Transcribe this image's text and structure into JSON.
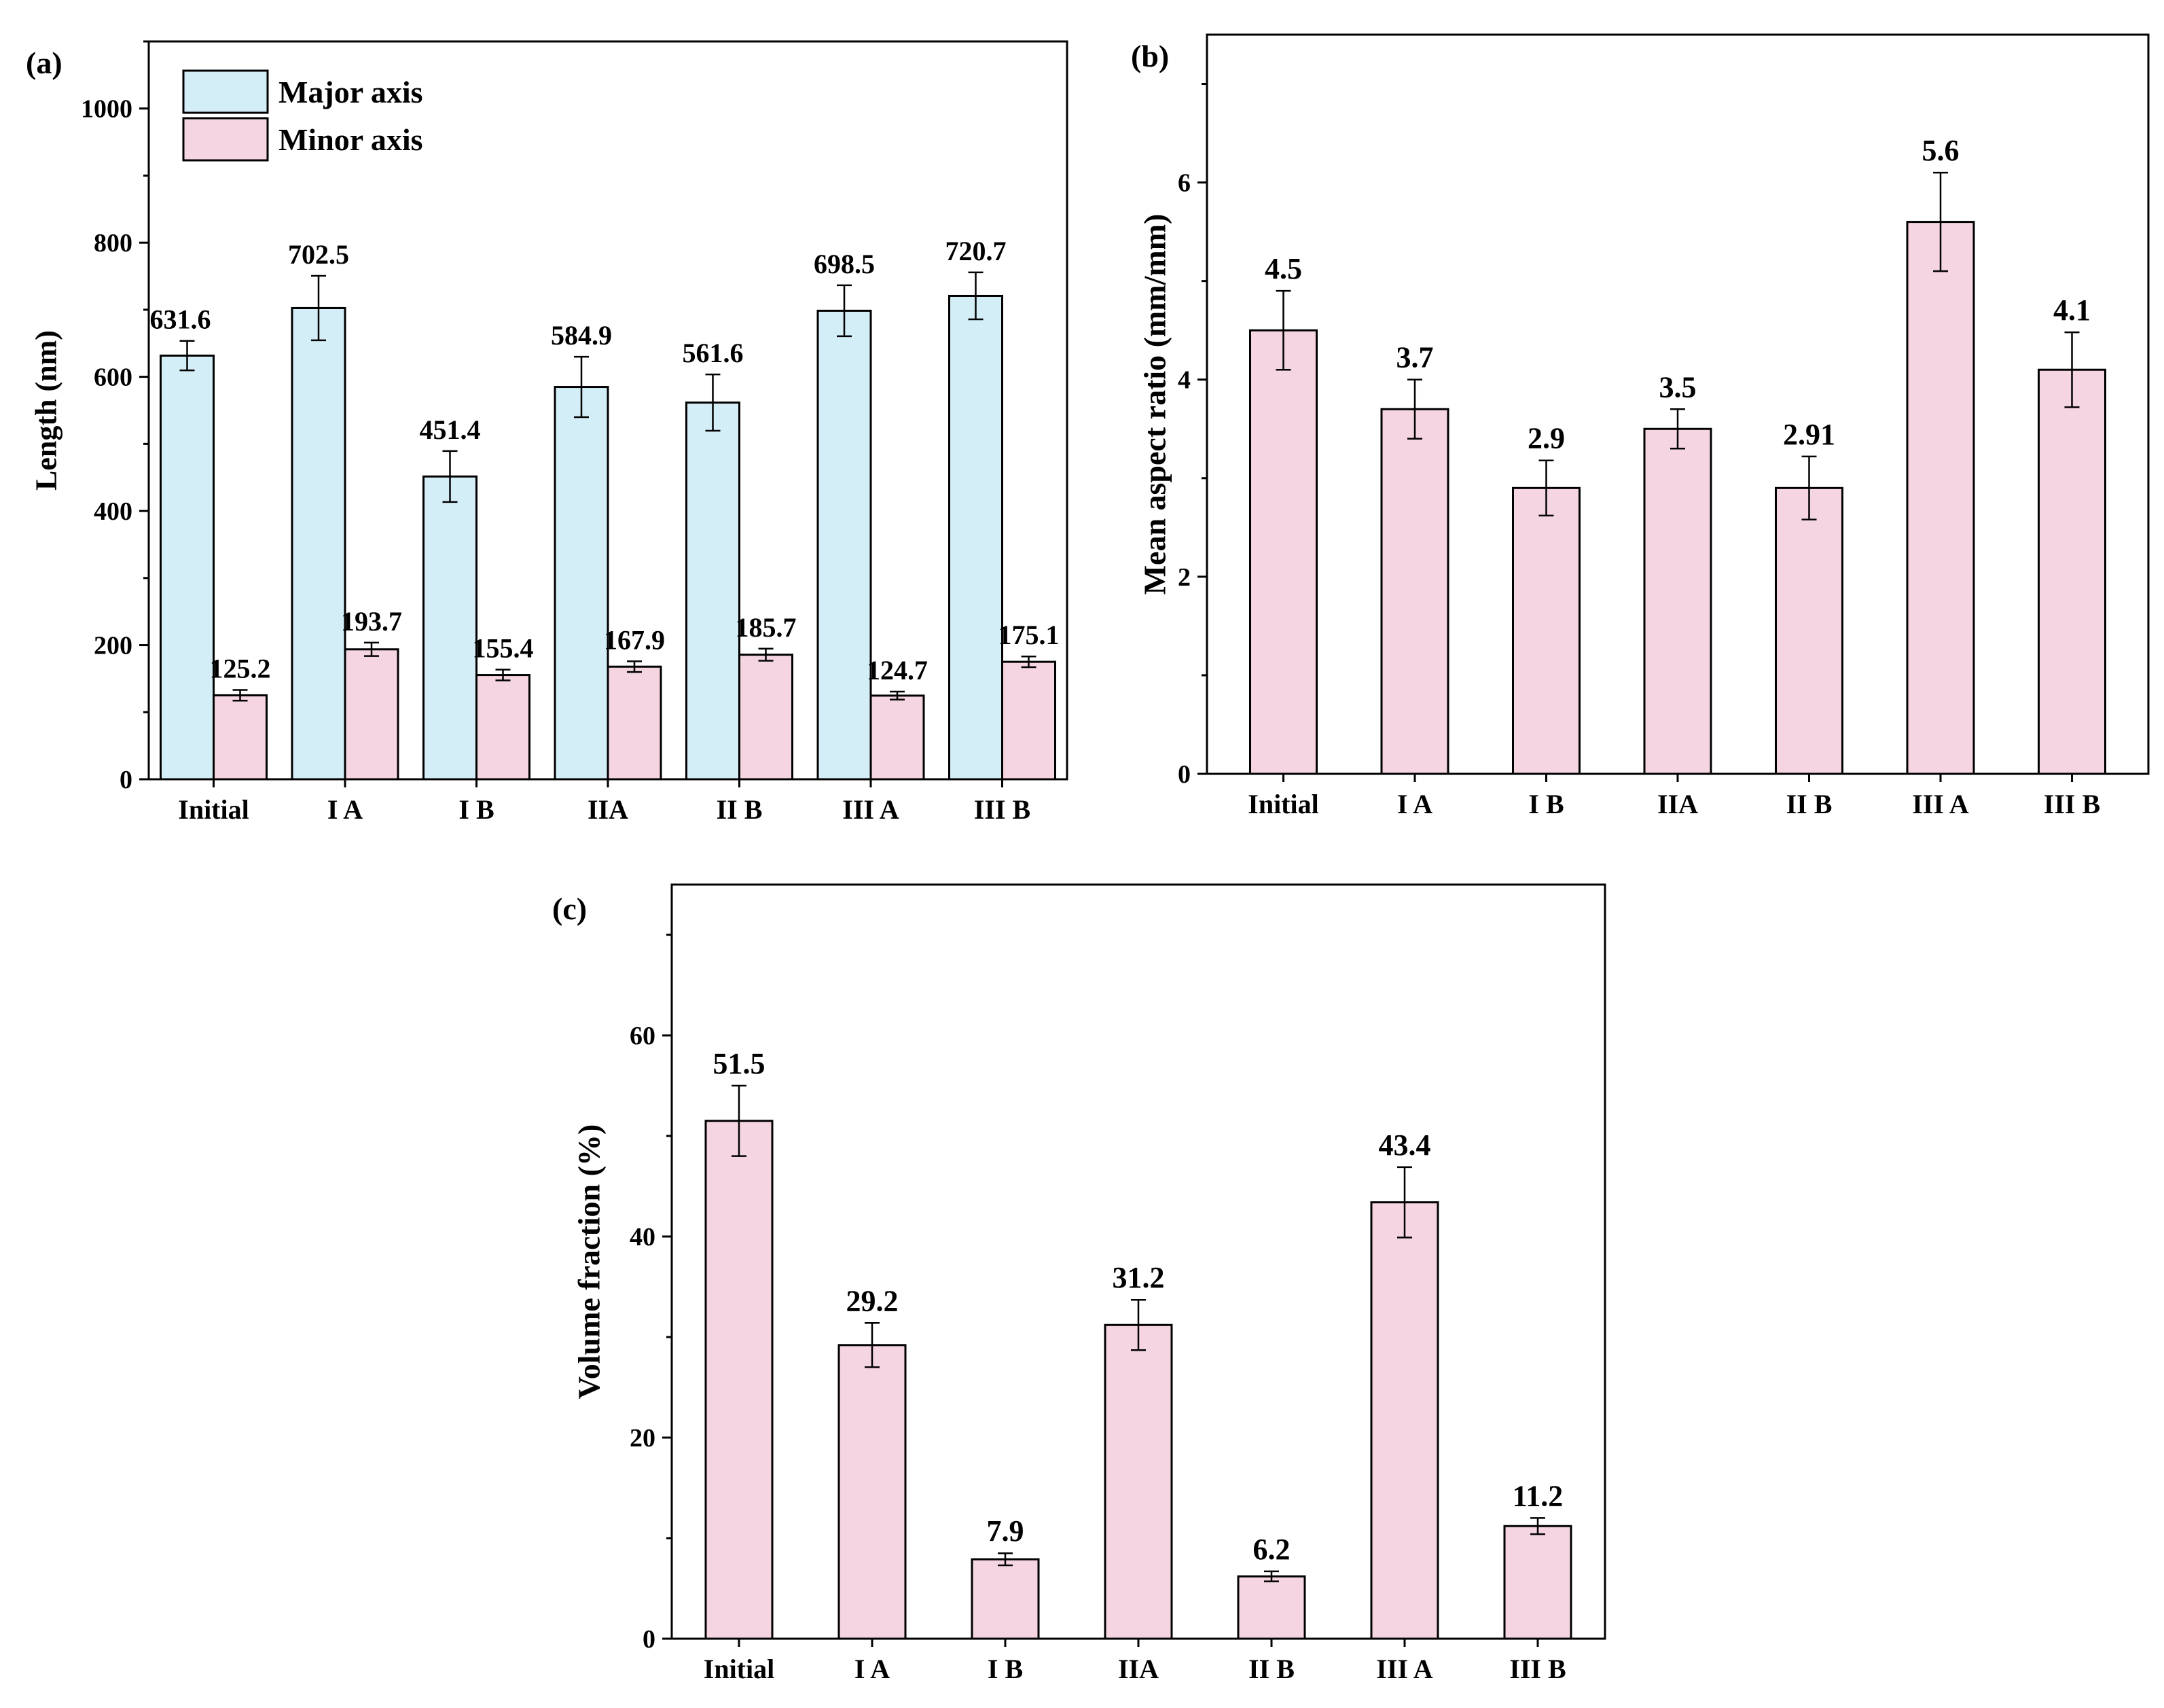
{
  "colors": {
    "major": "#d4eef7",
    "minor": "#f5d5e2",
    "axis": "#000000"
  },
  "chart_data": [
    {
      "id": "a",
      "type": "bar",
      "panel_label": "(a)",
      "categories": [
        "Initial",
        "I A",
        "I B",
        "IIA",
        "II B",
        "III A",
        "III B"
      ],
      "series": [
        {
          "name": "Major axis",
          "color": "#d4eef7",
          "values": [
            631.6,
            702.5,
            451.4,
            584.9,
            561.6,
            698.5,
            720.7
          ],
          "errors": [
            22,
            48,
            38,
            45,
            42,
            38,
            35
          ],
          "labels": [
            "631.6",
            "702.5",
            "451.4",
            "584.9",
            "561.6",
            "698.5",
            "720.7"
          ]
        },
        {
          "name": "Minor axis",
          "color": "#f5d5e2",
          "values": [
            125.2,
            193.7,
            155.4,
            167.9,
            185.7,
            124.7,
            175.1
          ],
          "errors": [
            8,
            10,
            8,
            8,
            9,
            6,
            8
          ],
          "labels": [
            "125.2",
            "193.7",
            "155.4",
            "167.9",
            "185.7",
            "124.7",
            "175.1"
          ]
        }
      ],
      "ylabel": "Length (nm)",
      "ylim": [
        0,
        1100
      ],
      "yticks": [
        0,
        200,
        400,
        600,
        800,
        1000
      ],
      "legend": "top-left"
    },
    {
      "id": "b",
      "type": "bar",
      "panel_label": "(b)",
      "categories": [
        "Initial",
        "I A",
        "I B",
        "IIA",
        "II B",
        "III A",
        "III B"
      ],
      "series": [
        {
          "name": "Mean aspect ratio",
          "color": "#f5d5e2",
          "values": [
            4.5,
            3.7,
            2.9,
            3.5,
            2.9,
            5.6,
            4.1
          ],
          "errors": [
            0.4,
            0.3,
            0.28,
            0.2,
            0.32,
            0.5,
            0.38
          ],
          "labels": [
            "4.5",
            "3.7",
            "2.9",
            "3.5",
            "2.91",
            "5.6",
            "4.1"
          ]
        }
      ],
      "ylabel": "Mean aspect ratio (mm/mm)",
      "ylim": [
        0,
        7.5
      ],
      "yticks": [
        0,
        2,
        4,
        6
      ]
    },
    {
      "id": "c",
      "type": "bar",
      "panel_label": "(c)",
      "categories": [
        "Initial",
        "I A",
        "I B",
        "IIA",
        "II B",
        "III A",
        "III B"
      ],
      "series": [
        {
          "name": "Volume fraction",
          "color": "#f5d5e2",
          "values": [
            51.5,
            29.2,
            7.9,
            31.2,
            6.2,
            43.4,
            11.2
          ],
          "errors": [
            3.5,
            2.2,
            0.6,
            2.5,
            0.5,
            3.5,
            0.8
          ],
          "labels": [
            "51.5",
            "29.2",
            "7.9",
            "31.2",
            "6.2",
            "43.4",
            "11.2"
          ]
        }
      ],
      "ylabel": "Volume fraction (%)",
      "ylim": [
        0,
        75
      ],
      "yticks": [
        0,
        20,
        40,
        60
      ]
    }
  ]
}
